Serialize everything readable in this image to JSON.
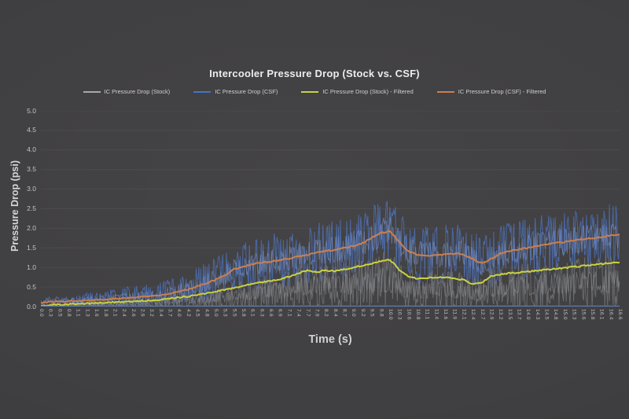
{
  "chart_data": {
    "type": "line",
    "title": "Intercooler Pressure Drop (Stock vs. CSF)",
    "xlabel": "Time (s)",
    "ylabel": "Pressure Drop (psi)",
    "ylim": [
      0,
      5
    ],
    "grid": true,
    "legend_position": "top",
    "background": "#403f41",
    "grid_color": "#4a4a4d",
    "axis_line_color": "#5d7cab",
    "y_tick_labels": [
      "0.0",
      "0.5",
      "1.0",
      "1.5",
      "2.0",
      "2.5",
      "3.0",
      "3.5",
      "4.0",
      "4.5",
      "5.0"
    ],
    "x_tick_labels": [
      "0.0",
      "0.3",
      "0.5",
      "0.8",
      "1.1",
      "1.3",
      "1.6",
      "1.8",
      "2.1",
      "2.4",
      "2.6",
      "2.9",
      "3.2",
      "3.4",
      "3.7",
      "4.0",
      "4.2",
      "4.5",
      "4.8",
      "5.0",
      "5.3",
      "5.5",
      "5.8",
      "6.1",
      "6.3",
      "6.6",
      "6.9",
      "7.1",
      "7.4",
      "7.7",
      "7.9",
      "8.2",
      "8.4",
      "8.7",
      "9.0",
      "9.2",
      "9.5",
      "9.8",
      "10.0",
      "10.3",
      "10.6",
      "10.8",
      "11.1",
      "11.4",
      "11.6",
      "11.9",
      "12.1",
      "12.4",
      "12.7",
      "12.9",
      "13.2",
      "13.5",
      "13.7",
      "14.0",
      "14.3",
      "14.5",
      "14.8",
      "15.0",
      "15.3",
      "15.6",
      "15.8",
      "16.1",
      "16.4",
      "16.6"
    ],
    "draw_order": [
      1,
      0,
      2,
      3
    ],
    "series": [
      {
        "id": "stock-raw",
        "name": "IC Pressure Drop (Stock)",
        "style": "raw",
        "color": "#a6a8ab",
        "plot_color": "rgba(112,114,118,0.85)",
        "core_color": "rgba(146,148,153,0.5)",
        "seed": 11,
        "mean": [
          0.02,
          0.03,
          0.03,
          0.04,
          0.04,
          0.05,
          0.05,
          0.06,
          0.06,
          0.07,
          0.08,
          0.09,
          0.1,
          0.11,
          0.12,
          0.14,
          0.16,
          0.18,
          0.2,
          0.23,
          0.26,
          0.28,
          0.31,
          0.34,
          0.36,
          0.39,
          0.41,
          0.45,
          0.5,
          0.54,
          0.52,
          0.55,
          0.53,
          0.56,
          0.59,
          0.62,
          0.65,
          0.68,
          0.7,
          0.56,
          0.45,
          0.42,
          0.43,
          0.44,
          0.44,
          0.43,
          0.4,
          0.34,
          0.37,
          0.46,
          0.48,
          0.5,
          0.51,
          0.53,
          0.54,
          0.55,
          0.57,
          0.58,
          0.59,
          0.61,
          0.62,
          0.64,
          0.65,
          0.66
        ],
        "noise_amp": [
          0.02,
          0.03,
          0.03,
          0.04,
          0.05,
          0.05,
          0.06,
          0.06,
          0.07,
          0.08,
          0.09,
          0.1,
          0.11,
          0.12,
          0.14,
          0.16,
          0.18,
          0.21,
          0.24,
          0.27,
          0.3,
          0.33,
          0.36,
          0.39,
          0.42,
          0.44,
          0.47,
          0.5,
          0.54,
          0.58,
          0.56,
          0.58,
          0.57,
          0.6,
          0.62,
          0.65,
          0.68,
          0.72,
          0.74,
          0.62,
          0.52,
          0.48,
          0.49,
          0.5,
          0.5,
          0.49,
          0.46,
          0.4,
          0.43,
          0.52,
          0.54,
          0.56,
          0.57,
          0.59,
          0.6,
          0.61,
          0.62,
          0.63,
          0.64,
          0.66,
          0.67,
          0.68,
          0.69,
          0.7
        ]
      },
      {
        "id": "csf-raw",
        "name": "IC Pressure Drop (CSF)",
        "style": "raw",
        "color": "#4472c4",
        "plot_color": "rgba(74,108,174,0.9)",
        "core_color": "rgba(123,151,207,0.55)",
        "seed": 29,
        "mean": [
          0.1,
          0.12,
          0.13,
          0.14,
          0.15,
          0.16,
          0.17,
          0.18,
          0.2,
          0.21,
          0.23,
          0.25,
          0.27,
          0.3,
          0.33,
          0.38,
          0.44,
          0.52,
          0.6,
          0.68,
          0.8,
          0.95,
          1.02,
          1.08,
          1.12,
          1.15,
          1.18,
          1.22,
          1.28,
          1.32,
          1.38,
          1.42,
          1.45,
          1.5,
          1.55,
          1.62,
          1.75,
          1.88,
          1.92,
          1.65,
          1.42,
          1.32,
          1.3,
          1.32,
          1.33,
          1.35,
          1.33,
          1.22,
          1.1,
          1.22,
          1.35,
          1.42,
          1.46,
          1.5,
          1.55,
          1.58,
          1.62,
          1.65,
          1.68,
          1.72,
          1.75,
          1.78,
          1.82,
          1.85
        ],
        "noise_amp": [
          0.12,
          0.14,
          0.15,
          0.16,
          0.18,
          0.2,
          0.22,
          0.24,
          0.26,
          0.28,
          0.3,
          0.32,
          0.34,
          0.36,
          0.38,
          0.42,
          0.46,
          0.5,
          0.52,
          0.55,
          0.58,
          0.6,
          0.62,
          0.65,
          0.68,
          0.7,
          0.72,
          0.72,
          0.74,
          0.75,
          0.76,
          0.78,
          0.78,
          0.78,
          0.8,
          0.8,
          0.82,
          0.85,
          0.82,
          0.8,
          0.78,
          0.76,
          0.75,
          0.75,
          0.76,
          0.76,
          0.75,
          0.72,
          0.72,
          0.74,
          0.75,
          0.76,
          0.76,
          0.77,
          0.78,
          0.78,
          0.78,
          0.78,
          0.78,
          0.78,
          0.78,
          0.79,
          0.8,
          0.8
        ]
      },
      {
        "id": "stock-filtered",
        "name": "IC Pressure Drop (Stock) - Filtered",
        "style": "smooth",
        "color": "#c9d13f",
        "seed": 51,
        "values": [
          0.03,
          0.04,
          0.05,
          0.06,
          0.07,
          0.08,
          0.09,
          0.1,
          0.11,
          0.12,
          0.13,
          0.15,
          0.16,
          0.18,
          0.2,
          0.23,
          0.26,
          0.3,
          0.34,
          0.38,
          0.43,
          0.48,
          0.52,
          0.58,
          0.62,
          0.66,
          0.7,
          0.76,
          0.85,
          0.92,
          0.88,
          0.93,
          0.9,
          0.95,
          1.0,
          1.05,
          1.1,
          1.16,
          1.2,
          0.95,
          0.76,
          0.72,
          0.73,
          0.75,
          0.75,
          0.73,
          0.68,
          0.57,
          0.62,
          0.78,
          0.82,
          0.85,
          0.87,
          0.9,
          0.92,
          0.94,
          0.96,
          0.99,
          1.01,
          1.04,
          1.06,
          1.09,
          1.11,
          1.13
        ]
      },
      {
        "id": "csf-filtered",
        "name": "IC Pressure Drop (CSF) - Filtered",
        "style": "smooth",
        "color": "#c97e4e",
        "seed": 77,
        "values": [
          0.1,
          0.12,
          0.13,
          0.14,
          0.15,
          0.16,
          0.17,
          0.18,
          0.2,
          0.21,
          0.23,
          0.25,
          0.27,
          0.3,
          0.33,
          0.38,
          0.44,
          0.52,
          0.6,
          0.68,
          0.8,
          0.95,
          1.02,
          1.08,
          1.12,
          1.15,
          1.18,
          1.22,
          1.28,
          1.32,
          1.38,
          1.42,
          1.45,
          1.5,
          1.55,
          1.62,
          1.75,
          1.88,
          1.92,
          1.65,
          1.42,
          1.32,
          1.3,
          1.32,
          1.33,
          1.35,
          1.33,
          1.22,
          1.1,
          1.22,
          1.35,
          1.42,
          1.46,
          1.5,
          1.55,
          1.58,
          1.62,
          1.65,
          1.68,
          1.72,
          1.75,
          1.78,
          1.82,
          1.85
        ]
      }
    ]
  }
}
